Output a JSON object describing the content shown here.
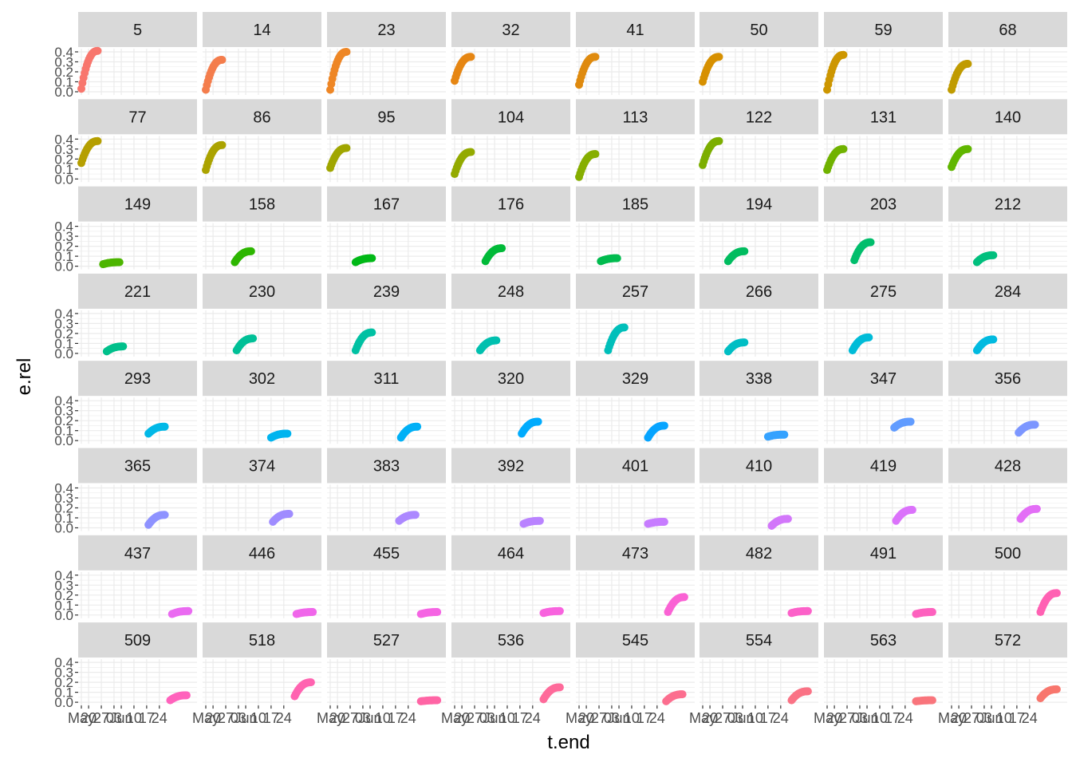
{
  "chart_data": {
    "type": "scatter",
    "facet_by": "group",
    "panels": [
      "5",
      "14",
      "23",
      "32",
      "41",
      "50",
      "59",
      "68",
      "77",
      "86",
      "95",
      "104",
      "113",
      "122",
      "131",
      "140",
      "149",
      "158",
      "167",
      "176",
      "185",
      "194",
      "203",
      "212",
      "221",
      "230",
      "239",
      "248",
      "257",
      "266",
      "275",
      "284",
      "293",
      "302",
      "311",
      "320",
      "329",
      "338",
      "347",
      "356",
      "365",
      "374",
      "383",
      "392",
      "401",
      "410",
      "419",
      "428",
      "437",
      "446",
      "455",
      "464",
      "473",
      "482",
      "491",
      "500",
      "509",
      "518",
      "527",
      "536",
      "545",
      "554",
      "563",
      "572"
    ],
    "colors": [
      "#F8766D",
      "#F47D4C",
      "#EE8625",
      "#E68613",
      "#DF8A0E",
      "#D79000",
      "#CD9600",
      "#C09B00",
      "#B59F00",
      "#ABA300",
      "#A0A600",
      "#93AA00",
      "#86AE00",
      "#7CAE00",
      "#70B200",
      "#60B600",
      "#4CB500",
      "#2DB600",
      "#00B816",
      "#00BA38",
      "#00BB4E",
      "#00BC5F",
      "#00BE6C",
      "#00BF7D",
      "#00C08B",
      "#00C097",
      "#00C1A3",
      "#00C0AF",
      "#00BFBA",
      "#00BEC4",
      "#00BCD8",
      "#00BAE0",
      "#00B8E7",
      "#00B4EF",
      "#00B0F6",
      "#00ABFD",
      "#06A4FF",
      "#35A2FF",
      "#619CFF",
      "#7C96FF",
      "#8E92FF",
      "#9F8CFF",
      "#AC88FF",
      "#B983FF",
      "#C77CFF",
      "#D277FA",
      "#DB72FB",
      "#E36EF6",
      "#EA6AF1",
      "#F066EA",
      "#F564E3",
      "#F863DE",
      "#FA62D4",
      "#FC61C9",
      "#FD61BE",
      "#FF61B3",
      "#FF62BC",
      "#FF63B0",
      "#FF65A5",
      "#FE6A9A",
      "#FC6E8F",
      "#FA7285",
      "#F9757C",
      "#F8766D"
    ],
    "xlabel": "t.end",
    "ylabel": "e.rel",
    "x_ticks": [
      "May",
      "20",
      "27",
      "03",
      "Jun",
      "10",
      "17",
      "24"
    ],
    "y_ticks": [
      "0.0",
      "0.1",
      "0.2",
      "0.3",
      "0.4"
    ],
    "ylim": [
      0,
      0.4
    ],
    "x_domain_days": [
      0,
      62
    ],
    "grid": true,
    "legend": "none",
    "series": [
      {
        "name": "5",
        "start": 0,
        "y0": 0.03,
        "y1": 0.41
      },
      {
        "name": "14",
        "start": 0,
        "y0": 0.02,
        "y1": 0.32
      },
      {
        "name": "23",
        "start": 0,
        "y0": 0.02,
        "y1": 0.4
      },
      {
        "name": "32",
        "start": 0,
        "y0": 0.11,
        "y1": 0.35
      },
      {
        "name": "41",
        "start": 0,
        "y0": 0.07,
        "y1": 0.35
      },
      {
        "name": "50",
        "start": 0,
        "y0": 0.1,
        "y1": 0.35
      },
      {
        "name": "59",
        "start": 0,
        "y0": 0.02,
        "y1": 0.37
      },
      {
        "name": "68",
        "start": 0,
        "y0": 0.02,
        "y1": 0.28
      },
      {
        "name": "77",
        "start": 0,
        "y0": 0.16,
        "y1": 0.38
      },
      {
        "name": "86",
        "start": 0,
        "y0": 0.09,
        "y1": 0.34
      },
      {
        "name": "95",
        "start": 0,
        "y0": 0.11,
        "y1": 0.31
      },
      {
        "name": "104",
        "start": 0,
        "y0": 0.05,
        "y1": 0.27
      },
      {
        "name": "113",
        "start": 0,
        "y0": 0.02,
        "y1": 0.25
      },
      {
        "name": "122",
        "start": 0,
        "y0": 0.14,
        "y1": 0.38
      },
      {
        "name": "131",
        "start": 0,
        "y0": 0.09,
        "y1": 0.3
      },
      {
        "name": "140",
        "start": 0,
        "y0": 0.12,
        "y1": 0.3
      },
      {
        "name": "149",
        "start": 12,
        "y0": 0.02,
        "y1": 0.04
      },
      {
        "name": "158",
        "start": 16,
        "y0": 0.04,
        "y1": 0.15
      },
      {
        "name": "167",
        "start": 14,
        "y0": 0.04,
        "y1": 0.08
      },
      {
        "name": "176",
        "start": 17,
        "y0": 0.05,
        "y1": 0.18
      },
      {
        "name": "185",
        "start": 12,
        "y0": 0.05,
        "y1": 0.08
      },
      {
        "name": "194",
        "start": 14,
        "y0": 0.05,
        "y1": 0.15
      },
      {
        "name": "203",
        "start": 15,
        "y0": 0.06,
        "y1": 0.24
      },
      {
        "name": "212",
        "start": 14,
        "y0": 0.04,
        "y1": 0.11
      },
      {
        "name": "221",
        "start": 14,
        "y0": 0.02,
        "y1": 0.07
      },
      {
        "name": "230",
        "start": 17,
        "y0": 0.03,
        "y1": 0.15
      },
      {
        "name": "239",
        "start": 14,
        "y0": 0.03,
        "y1": 0.21
      },
      {
        "name": "248",
        "start": 14,
        "y0": 0.03,
        "y1": 0.13
      },
      {
        "name": "257",
        "start": 16,
        "y0": 0.03,
        "y1": 0.26
      },
      {
        "name": "266",
        "start": 14,
        "y0": 0.02,
        "y1": 0.11
      },
      {
        "name": "275",
        "start": 14,
        "y0": 0.03,
        "y1": 0.16
      },
      {
        "name": "284",
        "start": 14,
        "y0": 0.03,
        "y1": 0.14
      },
      {
        "name": "293",
        "start": 37,
        "y0": 0.07,
        "y1": 0.14
      },
      {
        "name": "302",
        "start": 36,
        "y0": 0.03,
        "y1": 0.07
      },
      {
        "name": "311",
        "start": 39,
        "y0": 0.03,
        "y1": 0.14
      },
      {
        "name": "320",
        "start": 37,
        "y0": 0.07,
        "y1": 0.19
      },
      {
        "name": "329",
        "start": 38,
        "y0": 0.03,
        "y1": 0.15
      },
      {
        "name": "338",
        "start": 36,
        "y0": 0.04,
        "y1": 0.06
      },
      {
        "name": "347",
        "start": 37,
        "y0": 0.13,
        "y1": 0.19
      },
      {
        "name": "356",
        "start": 37,
        "y0": 0.08,
        "y1": 0.16
      },
      {
        "name": "365",
        "start": 37,
        "y0": 0.03,
        "y1": 0.13
      },
      {
        "name": "374",
        "start": 37,
        "y0": 0.06,
        "y1": 0.14
      },
      {
        "name": "383",
        "start": 38,
        "y0": 0.07,
        "y1": 0.13
      },
      {
        "name": "392",
        "start": 38,
        "y0": 0.04,
        "y1": 0.07
      },
      {
        "name": "401",
        "start": 38,
        "y0": 0.04,
        "y1": 0.06
      },
      {
        "name": "410",
        "start": 38,
        "y0": 0.02,
        "y1": 0.09
      },
      {
        "name": "419",
        "start": 38,
        "y0": 0.07,
        "y1": 0.18
      },
      {
        "name": "428",
        "start": 38,
        "y0": 0.09,
        "y1": 0.19
      },
      {
        "name": "437",
        "start": 50,
        "y0": 0.01,
        "y1": 0.04
      },
      {
        "name": "446",
        "start": 50,
        "y0": 0.01,
        "y1": 0.03
      },
      {
        "name": "455",
        "start": 50,
        "y0": 0.01,
        "y1": 0.03
      },
      {
        "name": "464",
        "start": 49,
        "y0": 0.02,
        "y1": 0.04
      },
      {
        "name": "473",
        "start": 49,
        "y0": 0.03,
        "y1": 0.18
      },
      {
        "name": "482",
        "start": 49,
        "y0": 0.02,
        "y1": 0.04
      },
      {
        "name": "491",
        "start": 49,
        "y0": 0.01,
        "y1": 0.03
      },
      {
        "name": "500",
        "start": 49,
        "y0": 0.03,
        "y1": 0.22
      },
      {
        "name": "509",
        "start": 49,
        "y0": 0.02,
        "y1": 0.07
      },
      {
        "name": "518",
        "start": 49,
        "y0": 0.06,
        "y1": 0.2
      },
      {
        "name": "527",
        "start": 50,
        "y0": 0.01,
        "y1": 0.02
      },
      {
        "name": "536",
        "start": 49,
        "y0": 0.03,
        "y1": 0.15
      },
      {
        "name": "545",
        "start": 48,
        "y0": 0.01,
        "y1": 0.08
      },
      {
        "name": "554",
        "start": 49,
        "y0": 0.02,
        "y1": 0.11
      },
      {
        "name": "563",
        "start": 49,
        "y0": 0.01,
        "y1": 0.02
      },
      {
        "name": "572",
        "start": 49,
        "y0": 0.04,
        "y1": 0.13
      }
    ]
  }
}
